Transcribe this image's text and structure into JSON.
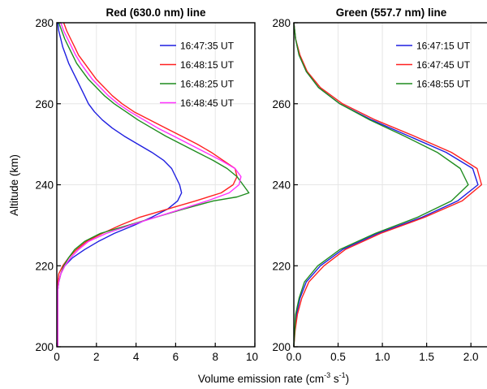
{
  "chart_data": [
    {
      "type": "line",
      "title": "Red (630.0 nm) line",
      "ylabel": "Altitude (km)",
      "xlim": [
        0,
        10
      ],
      "ylim": [
        200,
        280
      ],
      "xticks": [
        "0",
        "2",
        "4",
        "6",
        "8",
        "10"
      ],
      "yticks": [
        "200",
        "220",
        "240",
        "260",
        "280"
      ],
      "grid": true,
      "legend_position": "top-right",
      "series": [
        {
          "name": "16:47:35 UT",
          "color": "#1f1fe0",
          "points": [
            [
              0.05,
              200
            ],
            [
              0.05,
              214
            ],
            [
              0.1,
              216
            ],
            [
              0.2,
              218
            ],
            [
              0.4,
              220
            ],
            [
              0.8,
              222
            ],
            [
              1.4,
              224
            ],
            [
              2.1,
              226
            ],
            [
              2.9,
              228
            ],
            [
              3.9,
              230
            ],
            [
              4.8,
              232
            ],
            [
              5.6,
              234
            ],
            [
              6.1,
              236
            ],
            [
              6.3,
              238
            ],
            [
              6.2,
              240
            ],
            [
              6.0,
              242
            ],
            [
              5.8,
              244
            ],
            [
              5.4,
              246
            ],
            [
              4.8,
              248
            ],
            [
              4.1,
              250
            ],
            [
              3.4,
              252
            ],
            [
              2.8,
              254
            ],
            [
              2.3,
              256
            ],
            [
              1.9,
              258
            ],
            [
              1.6,
              260
            ],
            [
              1.4,
              262
            ],
            [
              1.2,
              264
            ],
            [
              1.0,
              266
            ],
            [
              0.8,
              268
            ],
            [
              0.6,
              270
            ],
            [
              0.45,
              272
            ],
            [
              0.3,
              274
            ],
            [
              0.2,
              276
            ],
            [
              0.1,
              278
            ],
            [
              0.05,
              280
            ]
          ]
        },
        {
          "name": "16:48:15 UT",
          "color": "#ff2020",
          "points": [
            [
              0.05,
              200
            ],
            [
              0.05,
              216
            ],
            [
              0.1,
              218
            ],
            [
              0.3,
              220
            ],
            [
              0.6,
              222
            ],
            [
              1.0,
              224
            ],
            [
              1.5,
              226
            ],
            [
              2.3,
              228
            ],
            [
              3.2,
              230
            ],
            [
              4.2,
              232
            ],
            [
              5.6,
              234
            ],
            [
              7.0,
              236
            ],
            [
              8.3,
              238
            ],
            [
              8.9,
              240
            ],
            [
              9.1,
              242
            ],
            [
              9.0,
              244
            ],
            [
              8.4,
              246
            ],
            [
              7.8,
              248
            ],
            [
              7.1,
              250
            ],
            [
              6.3,
              252
            ],
            [
              5.5,
              254
            ],
            [
              4.7,
              256
            ],
            [
              3.9,
              258
            ],
            [
              3.3,
              260
            ],
            [
              2.8,
              262
            ],
            [
              2.4,
              264
            ],
            [
              2.0,
              266
            ],
            [
              1.7,
              268
            ],
            [
              1.4,
              270
            ],
            [
              1.1,
              272
            ],
            [
              0.9,
              274
            ],
            [
              0.7,
              276
            ],
            [
              0.5,
              278
            ],
            [
              0.35,
              280
            ]
          ]
        },
        {
          "name": "16:48:25 UT",
          "color": "#1e8c1e",
          "points": [
            [
              0.05,
              200
            ],
            [
              0.05,
              214
            ],
            [
              0.1,
              216
            ],
            [
              0.2,
              218
            ],
            [
              0.35,
              220
            ],
            [
              0.6,
              222
            ],
            [
              0.9,
              224
            ],
            [
              1.4,
              226
            ],
            [
              2.2,
              228
            ],
            [
              3.6,
              230
            ],
            [
              5.0,
              232
            ],
            [
              6.4,
              234
            ],
            [
              7.9,
              236
            ],
            [
              9.1,
              237
            ],
            [
              9.7,
              238
            ],
            [
              9.4,
              240
            ],
            [
              9.1,
              242
            ],
            [
              8.6,
              244
            ],
            [
              7.9,
              246
            ],
            [
              7.1,
              248
            ],
            [
              6.3,
              250
            ],
            [
              5.5,
              252
            ],
            [
              4.8,
              254
            ],
            [
              4.1,
              256
            ],
            [
              3.5,
              258
            ],
            [
              2.9,
              260
            ],
            [
              2.4,
              262
            ],
            [
              2.0,
              264
            ],
            [
              1.6,
              266
            ],
            [
              1.3,
              268
            ],
            [
              1.0,
              270
            ],
            [
              0.8,
              272
            ],
            [
              0.6,
              274
            ],
            [
              0.4,
              276
            ],
            [
              0.25,
              278
            ],
            [
              0.1,
              280
            ]
          ]
        },
        {
          "name": "16:48:45 UT",
          "color": "#ff30ff",
          "points": [
            [
              0.05,
              200
            ],
            [
              0.05,
              214
            ],
            [
              0.1,
              216
            ],
            [
              0.2,
              218
            ],
            [
              0.4,
              220
            ],
            [
              0.7,
              222
            ],
            [
              1.1,
              224
            ],
            [
              1.6,
              226
            ],
            [
              2.5,
              228
            ],
            [
              3.7,
              230
            ],
            [
              5.0,
              232
            ],
            [
              6.3,
              234
            ],
            [
              7.6,
              236
            ],
            [
              8.7,
              238
            ],
            [
              9.2,
              240
            ],
            [
              9.3,
              242
            ],
            [
              9.0,
              244
            ],
            [
              8.3,
              246
            ],
            [
              7.5,
              248
            ],
            [
              6.7,
              250
            ],
            [
              5.9,
              252
            ],
            [
              5.1,
              254
            ],
            [
              4.4,
              256
            ],
            [
              3.7,
              258
            ],
            [
              3.1,
              260
            ],
            [
              2.6,
              262
            ],
            [
              2.2,
              264
            ],
            [
              1.8,
              266
            ],
            [
              1.5,
              268
            ],
            [
              1.2,
              270
            ],
            [
              0.95,
              272
            ],
            [
              0.75,
              274
            ],
            [
              0.55,
              276
            ],
            [
              0.35,
              278
            ],
            [
              0.2,
              280
            ]
          ]
        }
      ]
    },
    {
      "type": "line",
      "title": "Green (557.7 nm) line",
      "xlabel": "Volume emission rate (cm-3 s-1)",
      "xlim": [
        0,
        2.2
      ],
      "ylim": [
        200,
        280
      ],
      "xticks": [
        "0.0",
        "0.5",
        "1.0",
        "1.5",
        "2.0"
      ],
      "yticks": [
        "200",
        "220",
        "240",
        "260",
        "280"
      ],
      "grid": true,
      "legend_position": "top-right",
      "series": [
        {
          "name": "16:47:15 UT",
          "color": "#1f1fe0",
          "points": [
            [
              0.0,
              200
            ],
            [
              0.01,
              204
            ],
            [
              0.03,
              208
            ],
            [
              0.07,
              212
            ],
            [
              0.14,
              216
            ],
            [
              0.3,
              220
            ],
            [
              0.55,
              224
            ],
            [
              0.95,
              228
            ],
            [
              1.45,
              232
            ],
            [
              1.85,
              236
            ],
            [
              2.08,
              240
            ],
            [
              2.02,
              244
            ],
            [
              1.72,
              248
            ],
            [
              1.3,
              252
            ],
            [
              0.88,
              256
            ],
            [
              0.52,
              260
            ],
            [
              0.28,
              264
            ],
            [
              0.14,
              268
            ],
            [
              0.06,
              272
            ],
            [
              0.02,
              276
            ],
            [
              0.0,
              280
            ]
          ]
        },
        {
          "name": "16:47:45 UT",
          "color": "#ff2020",
          "points": [
            [
              0.0,
              200
            ],
            [
              0.015,
              204
            ],
            [
              0.04,
              208
            ],
            [
              0.09,
              212
            ],
            [
              0.17,
              216
            ],
            [
              0.34,
              220
            ],
            [
              0.58,
              224
            ],
            [
              0.98,
              228
            ],
            [
              1.48,
              232
            ],
            [
              1.9,
              236
            ],
            [
              2.12,
              240
            ],
            [
              2.07,
              244
            ],
            [
              1.78,
              248
            ],
            [
              1.36,
              252
            ],
            [
              0.92,
              256
            ],
            [
              0.55,
              260
            ],
            [
              0.3,
              264
            ],
            [
              0.15,
              268
            ],
            [
              0.07,
              272
            ],
            [
              0.02,
              276
            ],
            [
              0.0,
              280
            ]
          ]
        },
        {
          "name": "16:48:55 UT",
          "color": "#1e8c1e",
          "points": [
            [
              0.0,
              200
            ],
            [
              0.01,
              204
            ],
            [
              0.02,
              208
            ],
            [
              0.06,
              212
            ],
            [
              0.12,
              216
            ],
            [
              0.27,
              220
            ],
            [
              0.52,
              224
            ],
            [
              0.92,
              228
            ],
            [
              1.4,
              232
            ],
            [
              1.78,
              236
            ],
            [
              1.97,
              240
            ],
            [
              1.88,
              244
            ],
            [
              1.62,
              248
            ],
            [
              1.25,
              252
            ],
            [
              0.86,
              256
            ],
            [
              0.52,
              260
            ],
            [
              0.28,
              264
            ],
            [
              0.14,
              268
            ],
            [
              0.06,
              272
            ],
            [
              0.02,
              276
            ],
            [
              0.0,
              280
            ]
          ]
        }
      ]
    }
  ]
}
